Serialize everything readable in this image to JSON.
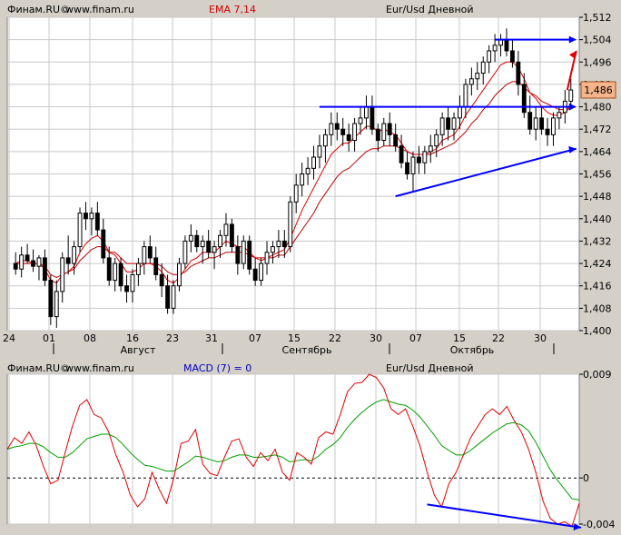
{
  "top_header": {
    "source": "Финам.RU©",
    "site": "www.finam.ru",
    "indicator": "EMA 7,14",
    "instrument": "Eur/Usd Дневной"
  },
  "bottom_header": {
    "source": "Финам.RU©",
    "site": "www.finam.ru",
    "indicator": "MACD (7) = 0",
    "instrument": "Eur/Usd Дневной"
  },
  "chart_data": [
    {
      "type": "candlestick",
      "instrument": "Eur/Usd Дневной",
      "indicator": "EMA 7,14",
      "ylim": [
        1.4,
        1.512
      ],
      "y_ticks": [
        "1,400",
        "1,408",
        "1,416",
        "1,424",
        "1,432",
        "1,440",
        "1,448",
        "1,456",
        "1,464",
        "1,472",
        "1,480",
        "1,488",
        "1,496",
        "1,504",
        "1,512"
      ],
      "last_price_label": "1,486",
      "x_day_labels": [
        "24",
        "01",
        "08",
        "16",
        "23",
        "31",
        "07",
        "15",
        "22",
        "30",
        "07",
        "15",
        "22",
        "30"
      ],
      "x_month_labels": [
        "Август",
        "Сентябрь",
        "Октябрь"
      ],
      "grid": true,
      "colors": {
        "up": "#ffffff",
        "down": "#000000",
        "ema_fast": "#e00000",
        "ema_slow": "#c00000",
        "annotations": "#0000ff",
        "arrow_up": "#e00000",
        "price_box": "#f5b48a"
      },
      "candles": [
        [
          1.424,
          1.428,
          1.42,
          1.422
        ],
        [
          1.422,
          1.43,
          1.419,
          1.427
        ],
        [
          1.427,
          1.431,
          1.424,
          1.425
        ],
        [
          1.425,
          1.429,
          1.421,
          1.423
        ],
        [
          1.423,
          1.427,
          1.418,
          1.426
        ],
        [
          1.426,
          1.429,
          1.416,
          1.418
        ],
        [
          1.418,
          1.42,
          1.402,
          1.405
        ],
        [
          1.405,
          1.418,
          1.401,
          1.414
        ],
        [
          1.414,
          1.428,
          1.41,
          1.426
        ],
        [
          1.426,
          1.434,
          1.42,
          1.424
        ],
        [
          1.424,
          1.432,
          1.42,
          1.43
        ],
        [
          1.43,
          1.444,
          1.428,
          1.442
        ],
        [
          1.442,
          1.446,
          1.436,
          1.44
        ],
        [
          1.44,
          1.444,
          1.434,
          1.442
        ],
        [
          1.442,
          1.446,
          1.434,
          1.436
        ],
        [
          1.436,
          1.44,
          1.424,
          1.426
        ],
        [
          1.426,
          1.43,
          1.416,
          1.418
        ],
        [
          1.418,
          1.426,
          1.414,
          1.424
        ],
        [
          1.424,
          1.426,
          1.414,
          1.416
        ],
        [
          1.416,
          1.42,
          1.41,
          1.414
        ],
        [
          1.414,
          1.422,
          1.41,
          1.42
        ],
        [
          1.42,
          1.426,
          1.416,
          1.424
        ],
        [
          1.424,
          1.432,
          1.42,
          1.43
        ],
        [
          1.43,
          1.434,
          1.424,
          1.426
        ],
        [
          1.426,
          1.43,
          1.418,
          1.42
        ],
        [
          1.42,
          1.424,
          1.412,
          1.416
        ],
        [
          1.416,
          1.42,
          1.406,
          1.408
        ],
        [
          1.408,
          1.418,
          1.406,
          1.416
        ],
        [
          1.416,
          1.426,
          1.414,
          1.424
        ],
        [
          1.424,
          1.434,
          1.422,
          1.432
        ],
        [
          1.432,
          1.438,
          1.428,
          1.434
        ],
        [
          1.434,
          1.436,
          1.428,
          1.43
        ],
        [
          1.43,
          1.434,
          1.424,
          1.432
        ],
        [
          1.432,
          1.436,
          1.426,
          1.428
        ],
        [
          1.428,
          1.432,
          1.422,
          1.43
        ],
        [
          1.43,
          1.436,
          1.426,
          1.434
        ],
        [
          1.434,
          1.442,
          1.43,
          1.438
        ],
        [
          1.438,
          1.44,
          1.428,
          1.43
        ],
        [
          1.43,
          1.434,
          1.42,
          1.424
        ],
        [
          1.424,
          1.434,
          1.422,
          1.432
        ],
        [
          1.432,
          1.434,
          1.42,
          1.422
        ],
        [
          1.422,
          1.426,
          1.416,
          1.418
        ],
        [
          1.418,
          1.426,
          1.416,
          1.424
        ],
        [
          1.424,
          1.432,
          1.42,
          1.428
        ],
        [
          1.428,
          1.432,
          1.424,
          1.43
        ],
        [
          1.43,
          1.436,
          1.426,
          1.432
        ],
        [
          1.432,
          1.436,
          1.426,
          1.43
        ],
        [
          1.43,
          1.448,
          1.428,
          1.446
        ],
        [
          1.446,
          1.456,
          1.442,
          1.452
        ],
        [
          1.452,
          1.46,
          1.448,
          1.456
        ],
        [
          1.456,
          1.462,
          1.452,
          1.458
        ],
        [
          1.458,
          1.466,
          1.454,
          1.462
        ],
        [
          1.462,
          1.47,
          1.458,
          1.466
        ],
        [
          1.466,
          1.472,
          1.46,
          1.47
        ],
        [
          1.47,
          1.478,
          1.466,
          1.474
        ],
        [
          1.474,
          1.478,
          1.468,
          1.472
        ],
        [
          1.472,
          1.476,
          1.466,
          1.47
        ],
        [
          1.47,
          1.474,
          1.464,
          1.468
        ],
        [
          1.468,
          1.476,
          1.464,
          1.474
        ],
        [
          1.474,
          1.48,
          1.47,
          1.476
        ],
        [
          1.476,
          1.484,
          1.472,
          1.48
        ],
        [
          1.48,
          1.484,
          1.47,
          1.472
        ],
        [
          1.472,
          1.474,
          1.464,
          1.468
        ],
        [
          1.468,
          1.476,
          1.466,
          1.474
        ],
        [
          1.474,
          1.478,
          1.466,
          1.47
        ],
        [
          1.47,
          1.474,
          1.464,
          1.466
        ],
        [
          1.466,
          1.47,
          1.458,
          1.46
        ],
        [
          1.46,
          1.464,
          1.454,
          1.456
        ],
        [
          1.456,
          1.464,
          1.45,
          1.462
        ],
        [
          1.462,
          1.466,
          1.456,
          1.46
        ],
        [
          1.46,
          1.466,
          1.456,
          1.464
        ],
        [
          1.464,
          1.47,
          1.46,
          1.466
        ],
        [
          1.466,
          1.472,
          1.462,
          1.47
        ],
        [
          1.47,
          1.478,
          1.466,
          1.476
        ],
        [
          1.476,
          1.48,
          1.468,
          1.472
        ],
        [
          1.472,
          1.478,
          1.468,
          1.476
        ],
        [
          1.476,
          1.484,
          1.472,
          1.48
        ],
        [
          1.48,
          1.49,
          1.476,
          1.488
        ],
        [
          1.488,
          1.494,
          1.484,
          1.49
        ],
        [
          1.49,
          1.496,
          1.486,
          1.492
        ],
        [
          1.492,
          1.498,
          1.488,
          1.496
        ],
        [
          1.496,
          1.502,
          1.492,
          1.5
        ],
        [
          1.5,
          1.506,
          1.496,
          1.502
        ],
        [
          1.502,
          1.506,
          1.498,
          1.504
        ],
        [
          1.504,
          1.508,
          1.498,
          1.5
        ],
        [
          1.5,
          1.504,
          1.494,
          1.496
        ],
        [
          1.496,
          1.5,
          1.484,
          1.488
        ],
        [
          1.488,
          1.492,
          1.476,
          1.478
        ],
        [
          1.478,
          1.484,
          1.47,
          1.472
        ],
        [
          1.472,
          1.48,
          1.468,
          1.476
        ],
        [
          1.476,
          1.48,
          1.47,
          1.472
        ],
        [
          1.472,
          1.476,
          1.466,
          1.47
        ],
        [
          1.47,
          1.478,
          1.466,
          1.476
        ],
        [
          1.476,
          1.48,
          1.472,
          1.478
        ],
        [
          1.478,
          1.486,
          1.474,
          1.482
        ],
        [
          1.482,
          1.49,
          1.48,
          1.486
        ]
      ],
      "ema_fast": [
        1.424,
        1.425,
        1.425,
        1.424,
        1.424,
        1.422,
        1.418,
        1.417,
        1.42,
        1.421,
        1.423,
        1.428,
        1.431,
        1.433,
        1.434,
        1.432,
        1.428,
        1.427,
        1.424,
        1.421,
        1.421,
        1.422,
        1.424,
        1.424,
        1.423,
        1.421,
        1.418,
        1.417,
        1.419,
        1.422,
        1.425,
        1.426,
        1.428,
        1.428,
        1.428,
        1.43,
        1.432,
        1.431,
        1.43,
        1.43,
        1.428,
        1.426,
        1.425,
        1.426,
        1.427,
        1.428,
        1.429,
        1.433,
        1.438,
        1.443,
        1.447,
        1.451,
        1.455,
        1.459,
        1.463,
        1.465,
        1.467,
        1.467,
        1.469,
        1.471,
        1.473,
        1.473,
        1.471,
        1.472,
        1.471,
        1.47,
        1.467,
        1.464,
        1.463,
        1.463,
        1.463,
        1.464,
        1.465,
        1.468,
        1.469,
        1.47,
        1.473,
        1.477,
        1.48,
        1.483,
        1.486,
        1.489,
        1.492,
        1.495,
        1.496,
        1.496,
        1.494,
        1.49,
        1.485,
        1.483,
        1.48,
        1.478,
        1.477,
        1.477,
        1.478,
        1.48
      ],
      "ema_slow": [
        1.424,
        1.424,
        1.424,
        1.424,
        1.424,
        1.423,
        1.42,
        1.419,
        1.42,
        1.421,
        1.422,
        1.425,
        1.427,
        1.429,
        1.43,
        1.43,
        1.428,
        1.428,
        1.426,
        1.424,
        1.424,
        1.424,
        1.424,
        1.424,
        1.424,
        1.423,
        1.421,
        1.42,
        1.42,
        1.421,
        1.423,
        1.424,
        1.425,
        1.426,
        1.426,
        1.427,
        1.428,
        1.428,
        1.428,
        1.428,
        1.427,
        1.426,
        1.426,
        1.426,
        1.426,
        1.427,
        1.427,
        1.43,
        1.433,
        1.436,
        1.439,
        1.442,
        1.446,
        1.449,
        1.452,
        1.455,
        1.457,
        1.458,
        1.46,
        1.462,
        1.464,
        1.465,
        1.465,
        1.466,
        1.466,
        1.466,
        1.465,
        1.464,
        1.463,
        1.463,
        1.463,
        1.463,
        1.464,
        1.465,
        1.466,
        1.467,
        1.469,
        1.471,
        1.474,
        1.476,
        1.479,
        1.481,
        1.484,
        1.486,
        1.488,
        1.489,
        1.489,
        1.487,
        1.485,
        1.484,
        1.482,
        1.481,
        1.48,
        1.479,
        1.479,
        1.48
      ]
    },
    {
      "type": "line",
      "instrument": "Eur/Usd Дневной",
      "indicator": "MACD (7) = 0",
      "ylim": [
        -0.004,
        0.009
      ],
      "y_ticks": [
        "0,009",
        "0",
        "-0,004"
      ],
      "series": [
        {
          "name": "MACD",
          "color": "#e00000",
          "values": [
            0.0025,
            0.0035,
            0.003,
            0.004,
            0.0028,
            0.001,
            -0.0005,
            -0.0002,
            0.0022,
            0.0045,
            0.0063,
            0.0068,
            0.0055,
            0.0052,
            0.004,
            0.002,
            0.0005,
            -0.0015,
            -0.0025,
            -0.0018,
            0.0005,
            -0.001,
            -0.0022,
            0.0,
            0.003,
            0.0032,
            0.0042,
            0.0012,
            0.0004,
            0.0002,
            0.0018,
            0.0032,
            0.0034,
            0.0018,
            0.001,
            0.0022,
            0.0015,
            0.0025,
            0.0005,
            -0.0002,
            0.0022,
            0.0018,
            0.0012,
            0.0035,
            0.004,
            0.0038,
            0.0055,
            0.0075,
            0.0082,
            0.0083,
            0.009,
            0.0087,
            0.0078,
            0.006,
            0.0055,
            0.006,
            0.0045,
            0.0028,
            0.0005,
            -0.0015,
            -0.0025,
            -0.0005,
            0.0005,
            0.002,
            0.0035,
            0.0045,
            0.0055,
            0.006,
            0.0055,
            0.0062,
            0.005,
            0.004,
            0.0025,
            0.0005,
            -0.002,
            -0.0035,
            -0.004,
            -0.0038,
            -0.0042,
            -0.0022
          ]
        },
        {
          "name": "Signal",
          "color": "#00a000",
          "values": [
            0.0025,
            0.0027,
            0.0028,
            0.003,
            0.003,
            0.0027,
            0.0022,
            0.0018,
            0.0018,
            0.0022,
            0.0028,
            0.0034,
            0.0036,
            0.0038,
            0.0038,
            0.0035,
            0.0029,
            0.0022,
            0.0016,
            0.0011,
            0.001,
            0.0008,
            0.0006,
            0.0006,
            0.001,
            0.0014,
            0.0019,
            0.0018,
            0.0016,
            0.0014,
            0.0015,
            0.0018,
            0.002,
            0.002,
            0.0018,
            0.0018,
            0.0019,
            0.002,
            0.0018,
            0.0014,
            0.0015,
            0.0016,
            0.0015,
            0.0019,
            0.0025,
            0.0029,
            0.0035,
            0.0044,
            0.0051,
            0.0057,
            0.0062,
            0.0066,
            0.0068,
            0.0066,
            0.0064,
            0.0063,
            0.0059,
            0.0053,
            0.0045,
            0.0037,
            0.0028,
            0.0024,
            0.002,
            0.002,
            0.0024,
            0.0029,
            0.0034,
            0.0039,
            0.0043,
            0.0047,
            0.0048,
            0.0046,
            0.0041,
            0.0031,
            0.0019,
            0.0007,
            -0.0002,
            -0.001,
            -0.0018,
            -0.0019
          ]
        }
      ],
      "grid": true,
      "colors": {
        "annotations": "#0000ff",
        "zero_line": "#000000"
      }
    }
  ]
}
